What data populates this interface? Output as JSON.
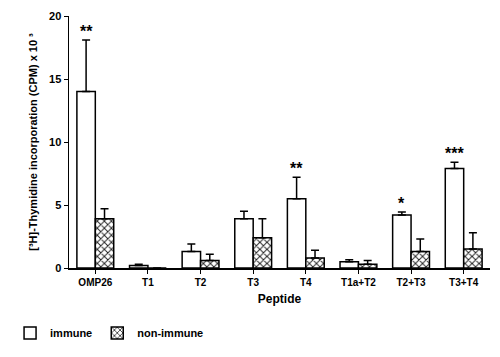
{
  "chart_data": {
    "type": "bar",
    "ylabel": "[³H]-Thymidine incorporation (CPM) x 10 ³",
    "xlabel": "Peptide",
    "categories": [
      "OMP26",
      "T1",
      "T2",
      "T3",
      "T4",
      "T1a+T2",
      "T2+T3",
      "T3+T4"
    ],
    "series": [
      {
        "name": "immune",
        "color": "#ffffff",
        "values": [
          14.0,
          0.2,
          1.3,
          3.9,
          5.5,
          0.5,
          4.2,
          7.9
        ],
        "errors": [
          4.1,
          0.1,
          0.6,
          0.6,
          1.7,
          0.15,
          0.25,
          0.5
        ]
      },
      {
        "name": "non-immune",
        "color": "#ffffff",
        "marker": "checkered",
        "values": [
          3.9,
          0,
          0.6,
          2.4,
          0.8,
          0.3,
          1.3,
          1.5
        ],
        "errors": [
          0.8,
          0,
          0.5,
          1.5,
          0.6,
          0.3,
          1.0,
          1.3
        ]
      }
    ],
    "ylim": [
      0,
      20
    ],
    "yticks": [
      0,
      5,
      10,
      15,
      20
    ],
    "grid": false,
    "legend": "bottom left",
    "annotations": [
      {
        "text": "**",
        "category": "OMP26"
      },
      {
        "text": "**",
        "category": "T4"
      },
      {
        "text": "*",
        "category": "T2+T3"
      },
      {
        "text": "***",
        "category": "T3+T4"
      }
    ]
  }
}
